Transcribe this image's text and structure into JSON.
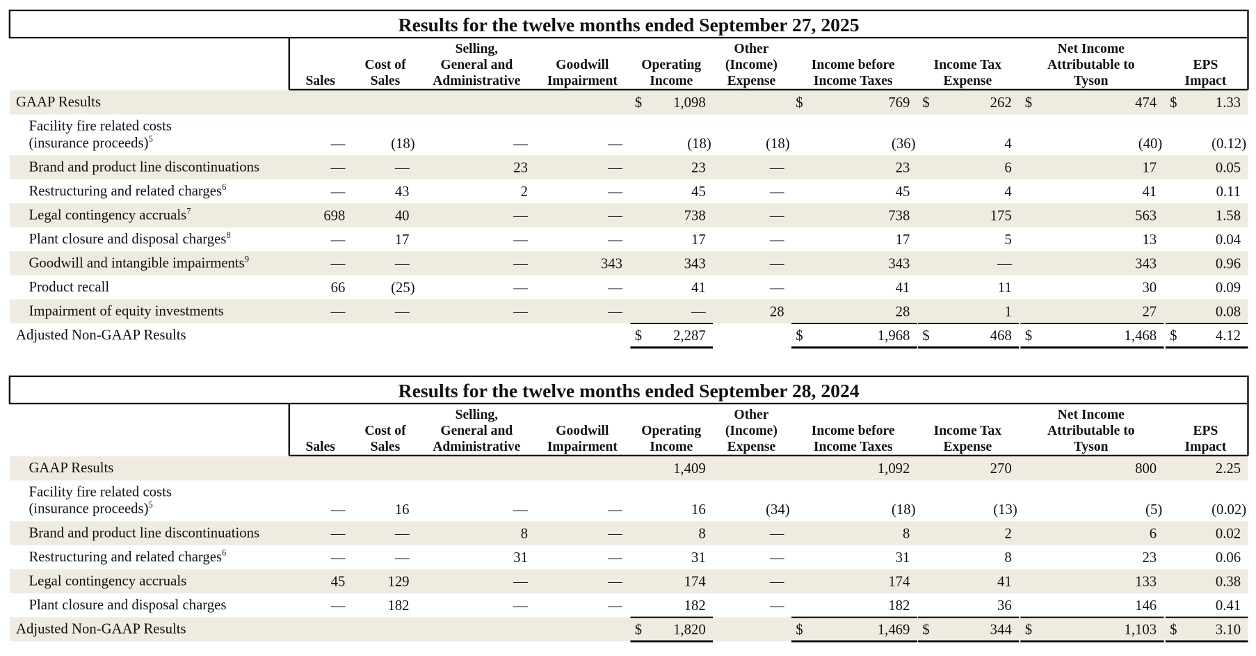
{
  "tables": [
    {
      "title": "Results for the twelve months ended September 27, 2025",
      "columns": [
        [
          "Sales"
        ],
        [
          "Cost of",
          "Sales"
        ],
        [
          "Selling,",
          "General and",
          "Administrative"
        ],
        [
          "Goodwill",
          "Impairment"
        ],
        [
          "Operating",
          "Income"
        ],
        [
          "Other",
          "(Income)",
          "Expense"
        ],
        [
          "Income before",
          "Income Taxes"
        ],
        [
          "Income Tax",
          "Expense"
        ],
        [
          "Net Income",
          "Attributable to",
          "Tyson"
        ],
        [
          "EPS",
          "Impact"
        ]
      ],
      "rows": [
        {
          "label": [
            "GAAP Results"
          ],
          "cells": [
            null,
            null,
            null,
            null,
            {
              "sign": "$",
              "text": "1,098"
            },
            null,
            {
              "sign": "$",
              "text": "769"
            },
            {
              "sign": "$",
              "text": "262"
            },
            {
              "sign": "$",
              "text": "474"
            },
            {
              "sign": "$",
              "text": "1.33"
            }
          ]
        },
        {
          "label": [
            "Facility fire related costs",
            "(insurance proceeds)"
          ],
          "note": "5",
          "cells": [
            "—",
            "(18)",
            "—",
            "—",
            "(18)",
            "(18)",
            "(36)",
            "4",
            "(40)",
            "(0.12)"
          ]
        },
        {
          "label": [
            "Brand and product line discontinuations"
          ],
          "cells": [
            "—",
            "—",
            "23",
            "—",
            "23",
            "—",
            "23",
            "6",
            "17",
            "0.05"
          ]
        },
        {
          "label": [
            "Restructuring and related charges"
          ],
          "note": "6",
          "cells": [
            "—",
            "43",
            "2",
            "—",
            "45",
            "—",
            "45",
            "4",
            "41",
            "0.11"
          ]
        },
        {
          "label": [
            "Legal contingency accruals"
          ],
          "note": "7",
          "cells": [
            "698",
            "40",
            "—",
            "—",
            "738",
            "—",
            "738",
            "175",
            "563",
            "1.58"
          ]
        },
        {
          "label": [
            "Plant closure and disposal charges"
          ],
          "note": "8",
          "cells": [
            "—",
            "17",
            "—",
            "—",
            "17",
            "—",
            "17",
            "5",
            "13",
            "0.04"
          ]
        },
        {
          "label": [
            "Goodwill and intangible impairments"
          ],
          "note": "9",
          "cells": [
            "—",
            "—",
            "—",
            "343",
            "343",
            "—",
            "343",
            "—",
            "343",
            "0.96"
          ]
        },
        {
          "label": [
            "Product recall"
          ],
          "cells": [
            "66",
            "(25)",
            "—",
            "—",
            "41",
            "—",
            "41",
            "11",
            "30",
            "0.09"
          ]
        },
        {
          "label": [
            "Impairment of equity investments"
          ],
          "cells": [
            "—",
            "—",
            "—",
            "—",
            "—",
            "28",
            "28",
            "1",
            "27",
            "0.08"
          ]
        },
        {
          "label": [
            "Adjusted Non-GAAP Results"
          ],
          "cells": [
            null,
            null,
            null,
            null,
            {
              "sign": "$",
              "text": "2,287"
            },
            null,
            {
              "sign": "$",
              "text": "1,968"
            },
            {
              "sign": "$",
              "text": "468"
            },
            {
              "sign": "$",
              "text": "1,468"
            },
            {
              "sign": "$",
              "text": "4.12"
            }
          ]
        }
      ]
    },
    {
      "title": "Results for the twelve months ended September 28, 2024",
      "columns": [
        [
          "Sales"
        ],
        [
          "Cost of",
          "Sales"
        ],
        [
          "Selling,",
          "General and",
          "Administrative"
        ],
        [
          "Goodwill",
          "Impairment"
        ],
        [
          "Operating",
          "Income"
        ],
        [
          "Other",
          "(Income)",
          "Expense"
        ],
        [
          "Income before",
          "Income Taxes"
        ],
        [
          "Income Tax",
          "Expense"
        ],
        [
          "Net Income",
          "Attributable to",
          "Tyson"
        ],
        [
          "EPS",
          "Impact"
        ]
      ],
      "rows": [
        {
          "label": [
            "GAAP Results"
          ],
          "cells": [
            null,
            null,
            null,
            null,
            "1,409",
            null,
            "1,092",
            "270",
            "800",
            "2.25"
          ]
        },
        {
          "label": [
            "Facility fire related costs",
            "(insurance proceeds)"
          ],
          "note": "5",
          "cells": [
            "—",
            "16",
            "—",
            "—",
            "16",
            "(34)",
            "(18)",
            "(13)",
            "(5)",
            "(0.02)"
          ]
        },
        {
          "label": [
            "Brand and product line discontinuations"
          ],
          "cells": [
            "—",
            "—",
            "8",
            "—",
            "8",
            "—",
            "8",
            "2",
            "6",
            "0.02"
          ]
        },
        {
          "label": [
            "Restructuring and related charges"
          ],
          "note": "6",
          "cells": [
            "—",
            "—",
            "31",
            "—",
            "31",
            "—",
            "31",
            "8",
            "23",
            "0.06"
          ]
        },
        {
          "label": [
            "Legal contingency accruals"
          ],
          "cells": [
            "45",
            "129",
            "—",
            "—",
            "174",
            "—",
            "174",
            "41",
            "133",
            "0.38"
          ]
        },
        {
          "label": [
            "Plant closure and disposal charges"
          ],
          "cells": [
            "—",
            "182",
            "—",
            "—",
            "182",
            "—",
            "182",
            "36",
            "146",
            "0.41"
          ]
        },
        {
          "label": [
            "Adjusted Non-GAAP Results"
          ],
          "cells": [
            null,
            null,
            null,
            null,
            {
              "sign": "$",
              "text": "1,820"
            },
            null,
            {
              "sign": "$",
              "text": "1,469"
            },
            {
              "sign": "$",
              "text": "344"
            },
            {
              "sign": "$",
              "text": "1,103"
            },
            {
              "sign": "$",
              "text": "3.10"
            }
          ]
        }
      ]
    }
  ]
}
